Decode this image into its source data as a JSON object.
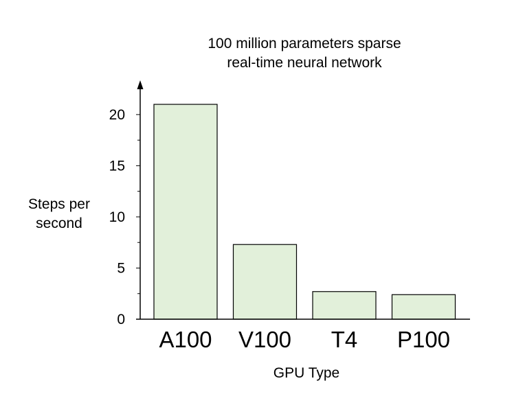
{
  "chart_data": {
    "type": "bar",
    "title_lines": [
      "100 million parameters sparse",
      "real-time neural network"
    ],
    "xlabel": "GPU Type",
    "ylabel_lines": [
      "Steps per",
      "second"
    ],
    "categories": [
      "A100",
      "V100",
      "T4",
      "P100"
    ],
    "values": [
      21.0,
      7.3,
      2.7,
      2.4
    ],
    "ylim": [
      0,
      21.5
    ],
    "yticks": [
      0,
      5,
      10,
      15,
      20
    ],
    "grid": false,
    "legend": "none",
    "bar_color": "#e2f0da",
    "bar_edge_color": "#000000"
  }
}
